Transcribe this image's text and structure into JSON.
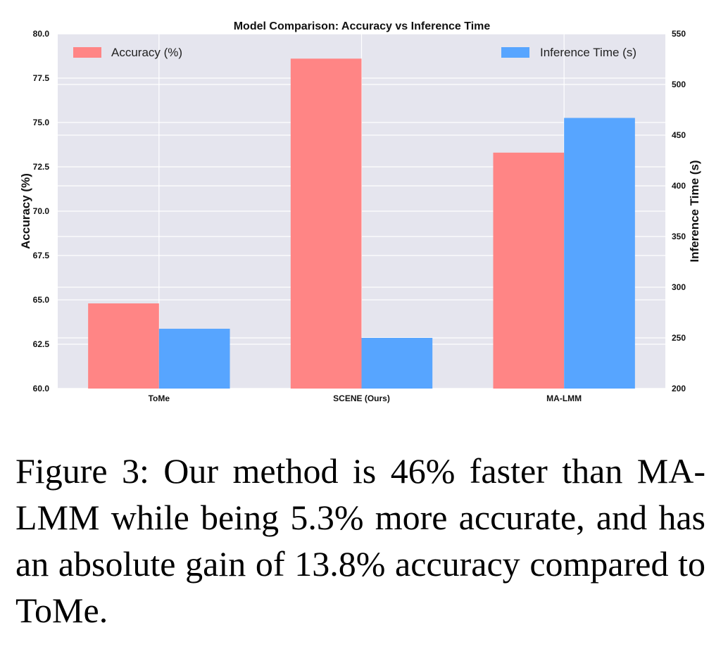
{
  "chart_data": {
    "type": "bar",
    "title": "Model Comparison: Accuracy vs Inference Time",
    "categories": [
      "ToMe",
      "SCENE (Ours)",
      "MA-LMM"
    ],
    "series": [
      {
        "name": "Accuracy (%)",
        "axis": "left",
        "color": "#ff8585",
        "values": [
          64.8,
          78.6,
          73.3
        ]
      },
      {
        "name": "Inference Time (s)",
        "axis": "right",
        "color": "#57a5ff",
        "values": [
          259,
          250,
          467
        ]
      }
    ],
    "ylabel_left": "Accuracy (%)",
    "ylabel_right": "Inference Time (s)",
    "ylim_left": [
      60,
      80
    ],
    "ylim_right": [
      200,
      550
    ],
    "yticks_left": [
      "60.0",
      "62.5",
      "65.0",
      "67.5",
      "70.0",
      "72.5",
      "75.0",
      "77.5",
      "80.0"
    ],
    "yticks_right": [
      "200",
      "250",
      "300",
      "350",
      "400",
      "450",
      "500",
      "550"
    ],
    "grid": true,
    "background": "#e5e5ee",
    "legend_placement": [
      "top-left",
      "top-right"
    ]
  },
  "caption": "Figure 3:  Our method is 46% faster than MA-LMM while being 5.3% more accurate, and has an absolute gain of 13.8% accuracy compared to ToMe."
}
